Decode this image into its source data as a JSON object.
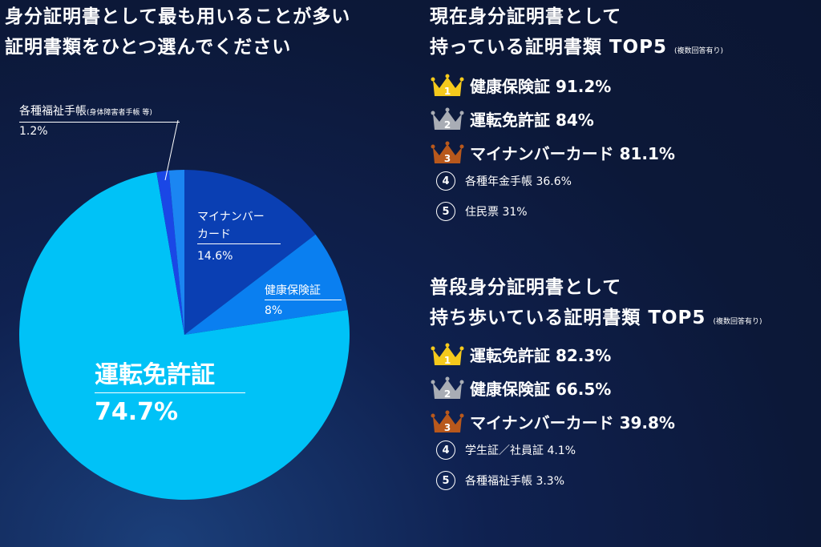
{
  "left_title": [
    "身分証明書として最も用いることが多い",
    "証明書類をひとつ選んでください"
  ],
  "chart_data": {
    "type": "pie",
    "slices": [
      {
        "label": "マイナンバーカード",
        "value": 14.6,
        "color": "#0a3fb3"
      },
      {
        "label": "健康保険証",
        "value": 8,
        "color": "#0a7ff0"
      },
      {
        "label": "運転免許証",
        "value": 74.7,
        "color": "#00c2f7"
      },
      {
        "label": "各種福祉手帳",
        "value": 1.2,
        "color": "#1a47e6"
      },
      {
        "label": "",
        "value": 1.5,
        "color": "#1b86f2"
      }
    ]
  },
  "labels": {
    "mynumber": {
      "l1": "マイナンバー",
      "l2": "カード",
      "v": "14.6%"
    },
    "health": {
      "l": "健康保険証",
      "v": "8%"
    },
    "license": {
      "l": "運転免許証",
      "v": "74.7%"
    },
    "welfare": {
      "l": "各種福祉手帳",
      "sub": "(身体障害者手帳 等)",
      "v": "1.2%"
    }
  },
  "section1": {
    "title1": "現在身分証明書として",
    "title2": "持っている証明書類 TOP5",
    "note": "(複数回答有り)",
    "items": [
      {
        "rank": "1",
        "text": "健康保険証 91.2%"
      },
      {
        "rank": "2",
        "text": "運転免許証 84%"
      },
      {
        "rank": "3",
        "text": "マイナンバーカード 81.1%"
      },
      {
        "rank": "4",
        "text": "各種年金手帳 36.6%"
      },
      {
        "rank": "5",
        "text": "住民票 31%"
      }
    ]
  },
  "section2": {
    "title1": "普段身分証明書として",
    "title2": "持ち歩いている証明書類 TOP5",
    "note": "(複数回答有り)",
    "items": [
      {
        "rank": "1",
        "text": "運転免許証 82.3%"
      },
      {
        "rank": "2",
        "text": "健康保険証 66.5%"
      },
      {
        "rank": "3",
        "text": "マイナンバーカード 39.8%"
      },
      {
        "rank": "4",
        "text": "学生証／社員証 4.1%"
      },
      {
        "rank": "5",
        "text": "各種福祉手帳 3.3%"
      }
    ]
  },
  "crown_colors": [
    "#f5c91c",
    "#a9adb5",
    "#b8581c"
  ]
}
